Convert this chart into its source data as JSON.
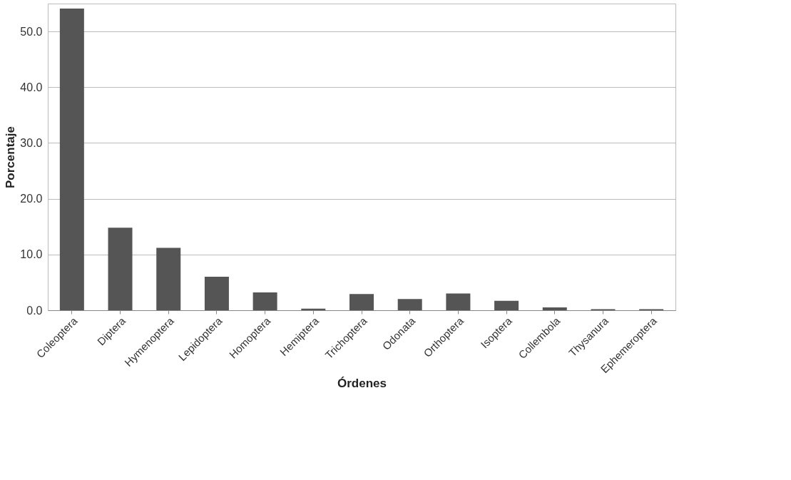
{
  "chart_data": {
    "type": "bar",
    "xlabel": "Órdenes",
    "ylabel": "Porcentaje",
    "categories": [
      "Coleoptera",
      "Diptera",
      "Hymenoptera",
      "Lepidoptera",
      "Homoptera",
      "Hemiptera",
      "Trichoptera",
      "Odonata",
      "Orthoptera",
      "Isoptera",
      "Collembola",
      "Thysanura",
      "Ephemeroptera"
    ],
    "values": [
      54.1,
      14.8,
      11.2,
      6.0,
      3.2,
      0.3,
      2.9,
      2.0,
      3.0,
      1.7,
      0.5,
      0.2,
      0.2
    ],
    "color": "#555555",
    "ylim": [
      0,
      55
    ],
    "yticks": [
      {
        "value": 0,
        "label": "0.0"
      },
      {
        "value": 10,
        "label": "10.0"
      },
      {
        "value": 20,
        "label": "20.0"
      },
      {
        "value": 30,
        "label": "30.0"
      },
      {
        "value": 40,
        "label": "40.0"
      },
      {
        "value": 50,
        "label": "50.0"
      }
    ],
    "grid": "y"
  }
}
